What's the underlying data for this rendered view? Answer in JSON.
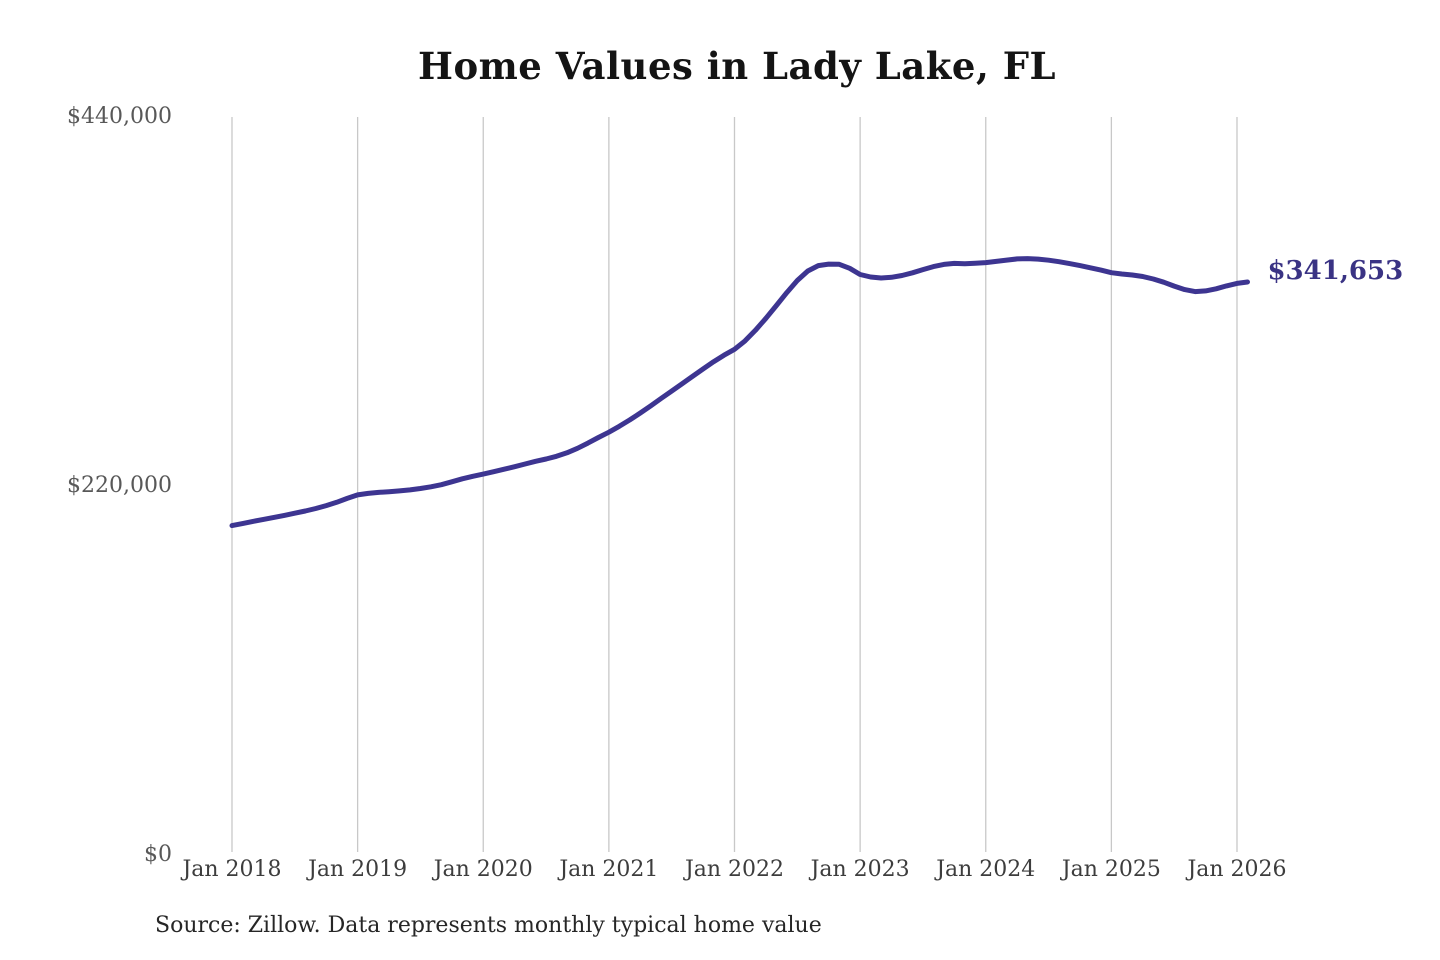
{
  "title": "Home Values in Lady Lake, FL",
  "source_note": "Source: Zillow. Data represents monthly typical home value",
  "end_label": "$341,653",
  "colors": {
    "background": "#ffffff",
    "line": "#3d3591",
    "end_label": "#3a3384",
    "grid": "#c8c8c8",
    "title_text": "#141414",
    "x_axis_text": "#3d3d3d",
    "y_axis_text": "#585858",
    "source_text": "#262626"
  },
  "chart_data": {
    "type": "line",
    "title": "Home Values in Lady Lake, FL",
    "series_name": "Typical home value",
    "frequency": "monthly",
    "start_month": "Jan 2018",
    "end_month": "Feb 2026",
    "latest_value": 341653,
    "ylim": [
      0,
      440000
    ],
    "grid": "vertical-only",
    "legend_position": "none",
    "y_ticks": [
      {
        "label": "$440,000",
        "value": 440000
      },
      {
        "label": "$220,000",
        "value": 220000
      },
      {
        "label": "$0",
        "value": 0
      }
    ],
    "x_tick_labels": [
      "Jan 2018",
      "Jan 2019",
      "Jan 2020",
      "Jan 2021",
      "Jan 2022",
      "Jan 2023",
      "Jan 2024",
      "Jan 2025",
      "Jan 2026"
    ],
    "x_tick_month_indices": [
      0,
      12,
      24,
      36,
      48,
      60,
      72,
      84,
      96
    ],
    "values": [
      196400,
      197600,
      198900,
      200100,
      201300,
      202500,
      203800,
      205100,
      206600,
      208300,
      210300,
      212600,
      214700,
      215600,
      216200,
      216600,
      217100,
      217700,
      218500,
      219500,
      220800,
      222500,
      224300,
      225800,
      227100,
      228500,
      230000,
      231500,
      233100,
      234700,
      236100,
      237700,
      239800,
      242500,
      245600,
      248900,
      252100,
      255600,
      259400,
      263500,
      267800,
      272200,
      276600,
      281000,
      285400,
      289800,
      294100,
      298000,
      301500,
      306500,
      312800,
      320000,
      327600,
      335300,
      342500,
      348200,
      351400,
      352300,
      352200,
      349800,
      346100,
      344600,
      344000,
      344400,
      345500,
      347100,
      349000,
      350800,
      352100,
      352700,
      352500,
      352800,
      353200,
      353900,
      354700,
      355400,
      355600,
      355300,
      354600,
      353700,
      352600,
      351400,
      350100,
      348700,
      347200,
      346400,
      345800,
      344900,
      343400,
      341500,
      339200,
      337100,
      335900,
      336300,
      337600,
      339300,
      340800,
      341653
    ]
  }
}
